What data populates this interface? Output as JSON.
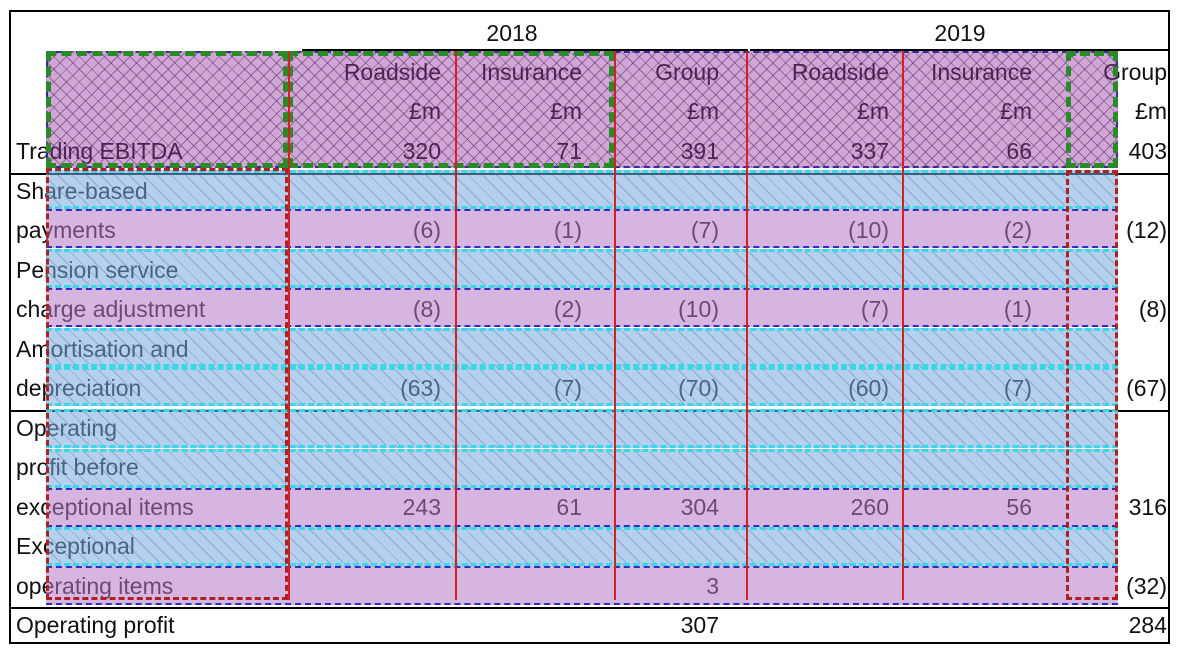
{
  "years": [
    "2018",
    "2019"
  ],
  "columns": [
    {
      "name": "Roadside",
      "unit": "£m"
    },
    {
      "name": "Insurance",
      "unit": "£m"
    },
    {
      "name": "Group",
      "unit": "£m"
    },
    {
      "name": "Roadside",
      "unit": "£m"
    },
    {
      "name": "Insurance",
      "unit": "£m"
    },
    {
      "name": "Group",
      "unit": "£m"
    }
  ],
  "rows": [
    {
      "label": [
        "Trading EBITDA"
      ],
      "values": [
        "320",
        "71",
        "391",
        "337",
        "66",
        "403"
      ]
    },
    {
      "label": [
        "Share-based",
        "payments"
      ],
      "values": [
        "(6)",
        "(1)",
        "(7)",
        "(10)",
        "(2)",
        "(12)"
      ]
    },
    {
      "label": [
        "Pension service",
        "charge adjustment"
      ],
      "values": [
        "(8)",
        "(2)",
        "(10)",
        "(7)",
        "(1)",
        "(8)"
      ]
    },
    {
      "label": [
        "Amortisation and",
        "depreciation"
      ],
      "values": [
        "(63)",
        "(7)",
        "(70)",
        "(60)",
        "(7)",
        "(67)"
      ]
    },
    {
      "label": [
        "Operating",
        "profit before",
        "exceptional items"
      ],
      "values": [
        "243",
        "61",
        "304",
        "260",
        "56",
        "316"
      ]
    },
    {
      "label": [
        "Exceptional",
        "operating items"
      ],
      "values": [
        "",
        "",
        "3",
        "",
        "",
        "(32)"
      ]
    },
    {
      "label": [
        "Operating profit"
      ],
      "values": [
        "",
        "",
        "307",
        "",
        "",
        "284"
      ]
    }
  ]
}
